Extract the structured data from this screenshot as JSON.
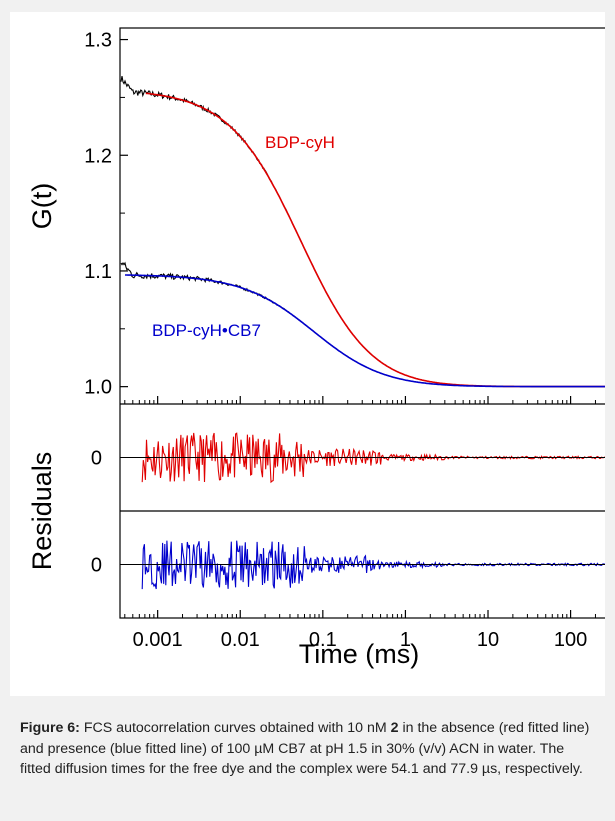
{
  "chart_data": {
    "type": "line",
    "x_scale": "log",
    "xlabel": "Time (ms)",
    "xlim": [
      0.00035,
      300
    ],
    "x_ticks": [
      0.001,
      0.01,
      0.1,
      1,
      10,
      100
    ],
    "x_tick_labels": [
      "0.001",
      "0.01",
      "0.1",
      "1",
      "10",
      "100"
    ],
    "panels": [
      {
        "id": "main",
        "ylabel": "G(t)",
        "ylim": [
          0.985,
          1.31
        ],
        "y_ticks": [
          1.0,
          1.1,
          1.2,
          1.3
        ],
        "y_tick_labels": [
          "1.0",
          "1.1",
          "1.2",
          "1.3"
        ],
        "fits": [
          {
            "name": "BDP-cyH",
            "color": "#e00000",
            "tau_ms": 0.0541,
            "g0": 0.257,
            "offset": 1.0,
            "x_start": 0.0007
          },
          {
            "name": "BDP-cyH•CB7",
            "color": "#0000cc",
            "tau_ms": 0.0779,
            "g0": 0.097,
            "offset": 1.0,
            "x_start": 0.0004
          }
        ],
        "data_color": "#000000",
        "annotations": [
          {
            "text": "BDP-cyH",
            "color": "#e00000"
          },
          {
            "text": "BDP-cyH•CB7",
            "color": "#0000cc"
          }
        ]
      },
      {
        "id": "residuals-red",
        "color": "#e00000",
        "zero_label": "0",
        "x_start": 0.00065,
        "amplitude": 0.0115,
        "ylim": [
          -0.025,
          0.025
        ]
      },
      {
        "id": "residuals-blue",
        "color": "#0000cc",
        "zero_label": "0",
        "x_start": 0.00065,
        "amplitude": 0.0115,
        "ylim": [
          -0.025,
          0.025
        ]
      }
    ],
    "residuals_ylabel": "Residuals"
  },
  "caption": {
    "label": "Figure 6:",
    "text_before": " FCS autocorrelation curves obtained with 10 nM ",
    "compound": "2",
    "text_after": " in the absence (red fitted line) and presence (blue fitted line) of 100 µM CB7 at pH 1.5 in 30% (v/v) ACN in water. The fitted diffusion times for the free dye and the complex were 54.1 and 77.9 µs, respectively."
  }
}
